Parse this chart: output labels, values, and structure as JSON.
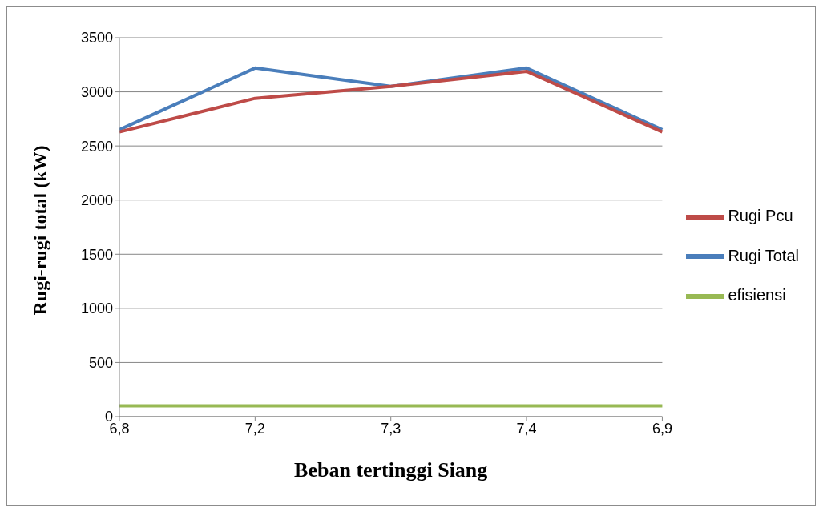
{
  "chart_data": {
    "type": "line",
    "xlabel": "Beban tertinggi Siang",
    "ylabel": "Rugi-rugi total (kW)",
    "categories": [
      "6,8",
      "7,2",
      "7,3",
      "7,4",
      "6,9"
    ],
    "series": [
      {
        "name": "Rugi Total",
        "color": "#4a7ebb",
        "values": [
          2650,
          3220,
          3050,
          3220,
          2650
        ]
      },
      {
        "name": "Rugi Pcu",
        "color": "#be4b48",
        "values": [
          2630,
          2940,
          3050,
          3190,
          2630
        ]
      },
      {
        "name": "efisiensi",
        "color": "#98b954",
        "values": [
          100,
          100,
          100,
          100,
          100
        ]
      }
    ],
    "ylim": [
      0,
      3500
    ],
    "yticks": [
      0,
      500,
      1000,
      1500,
      2000,
      2500,
      3000,
      3500
    ],
    "grid": "y",
    "legend": "right",
    "marker": "none",
    "line_style": "solid"
  }
}
